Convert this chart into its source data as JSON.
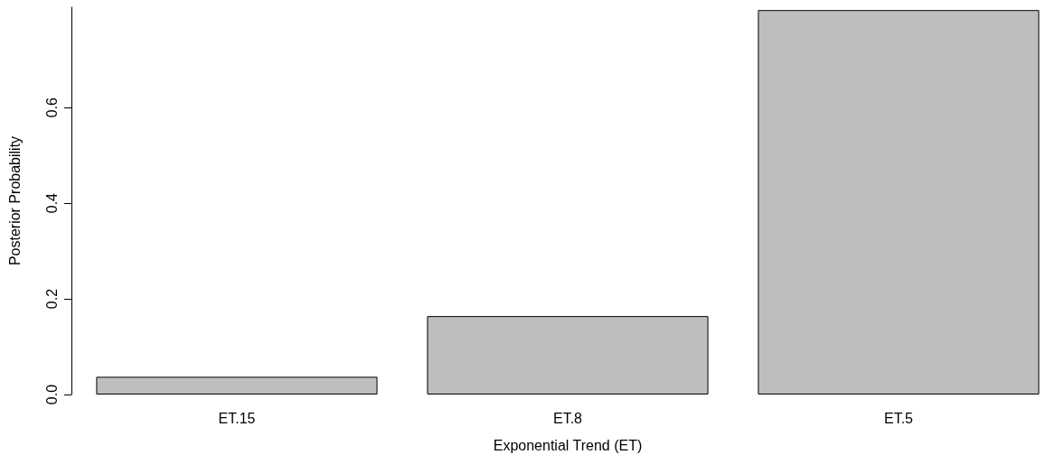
{
  "chart_data": {
    "type": "bar",
    "xlabel": "Exponential Trend (ET)",
    "ylabel": "Posterior Probability",
    "categories": [
      "ET.15",
      "ET.8",
      "ET.5"
    ],
    "values": [
      0.037,
      0.164,
      0.804
    ],
    "color": "#bebebe",
    "ylim": [
      0,
      0.81
    ],
    "yticks": [
      {
        "value": 0,
        "label": "0.0"
      },
      {
        "value": 0.2,
        "label": "0.2"
      },
      {
        "value": 0.4,
        "label": "0.4"
      },
      {
        "value": 0.6,
        "label": "0.6"
      }
    ],
    "grid": false
  }
}
